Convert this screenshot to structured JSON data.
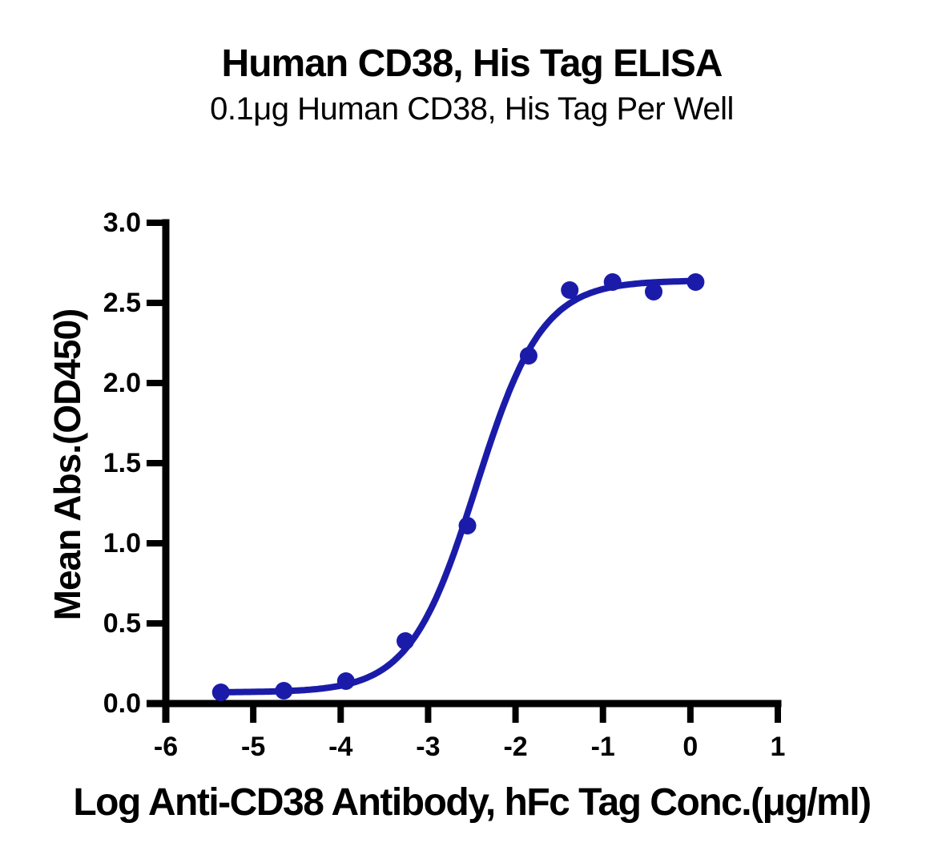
{
  "chart_data": {
    "type": "scatter",
    "title": "Human CD38, His Tag ELISA",
    "subtitle": "0.1μg Human CD38, His Tag Per Well",
    "xlabel": "Log Anti-CD38 Antibody, hFc Tag Conc.(μg/ml)",
    "ylabel": "Mean Abs.(OD450)",
    "xlim": [
      -6,
      1
    ],
    "ylim": [
      0,
      3
    ],
    "x_tick_values": [
      -6,
      -5,
      -4,
      -3,
      -2,
      -1,
      0,
      1
    ],
    "x_tick_labels": [
      "-6",
      "-5",
      "-4",
      "-3",
      "-2",
      "-1",
      "0",
      "1"
    ],
    "y_tick_values": [
      0,
      0.5,
      1,
      1.5,
      2,
      2.5,
      3
    ],
    "y_tick_labels": [
      "0.0",
      "0.5",
      "1.0",
      "1.5",
      "2.0",
      "2.5",
      "3.0"
    ],
    "grid": false,
    "legend_position": "none",
    "points": [
      {
        "log_conc": -5.37,
        "od450": 0.07
      },
      {
        "log_conc": -4.65,
        "od450": 0.08
      },
      {
        "log_conc": -3.94,
        "od450": 0.14
      },
      {
        "log_conc": -3.26,
        "od450": 0.39
      },
      {
        "log_conc": -2.55,
        "od450": 1.11
      },
      {
        "log_conc": -1.85,
        "od450": 2.17
      },
      {
        "log_conc": -1.38,
        "od450": 2.58
      },
      {
        "log_conc": -0.89,
        "od450": 2.63
      },
      {
        "log_conc": -0.42,
        "od450": 2.57
      },
      {
        "log_conc": 0.06,
        "od450": 2.63
      }
    ],
    "fit_curve": {
      "model": "4PL",
      "bottom": 0.07,
      "top": 2.64,
      "logEC50": -2.45,
      "hillslope": 1.15,
      "x_start": -5.37,
      "x_end": 0.06
    },
    "colors": {
      "series": "#1B1BAA",
      "axis": "#000000",
      "text": "#000000"
    }
  }
}
